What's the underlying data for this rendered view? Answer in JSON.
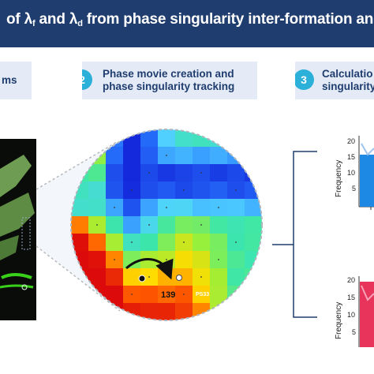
{
  "banner": {
    "title_prefix": "of ",
    "lambda_f_symbol": "λ",
    "lambda_f_sub": "f",
    "and_word": " and ",
    "lambda_d_symbol": "λ",
    "lambda_d_sub": "d",
    "title_suffix": " from phase singularity inter-formation and"
  },
  "steps": [
    {
      "number": "",
      "line1": "",
      "line2": "ms"
    },
    {
      "number": "2",
      "line1": "Phase movie creation and",
      "line2": "phase singularity tracking"
    },
    {
      "number": "3",
      "line1": "Calculatio",
      "line2": "singularity"
    }
  ],
  "phase_map": {
    "label_id": "139",
    "label_ps": "PS33"
  },
  "charts": {
    "top": {
      "ylabel": "Frequency",
      "ticks": [
        "20",
        "15",
        "10",
        "5"
      ],
      "bar_color": "#1e88e5"
    },
    "bottom": {
      "ylabel": "Frequency",
      "ticks": [
        "20",
        "15",
        "10",
        "5"
      ],
      "bar_color": "#e8335a"
    }
  },
  "colors": {
    "banner": "#1f3d6e",
    "card": "#e4ebf7",
    "badge": "#2bb0d9",
    "connector": "#1f3d6e"
  }
}
